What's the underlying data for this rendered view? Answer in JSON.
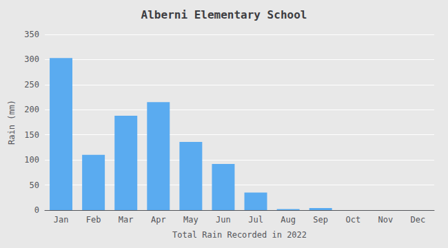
{
  "chart_data": {
    "type": "bar",
    "title": "Alberni Elementary School",
    "xlabel": "Total Rain Recorded in 2022",
    "ylabel": "Rain (mm)",
    "categories": [
      "Jan",
      "Feb",
      "Mar",
      "Apr",
      "May",
      "Jun",
      "Jul",
      "Aug",
      "Sep",
      "Oct",
      "Nov",
      "Dec"
    ],
    "values": [
      303,
      110,
      188,
      215,
      136,
      92,
      35,
      2,
      4,
      0,
      0,
      0
    ],
    "color": "#5aabf0",
    "ylim": [
      0,
      350
    ],
    "yticks": [
      0,
      50,
      100,
      150,
      200,
      250,
      300,
      350
    ],
    "grid": true
  }
}
